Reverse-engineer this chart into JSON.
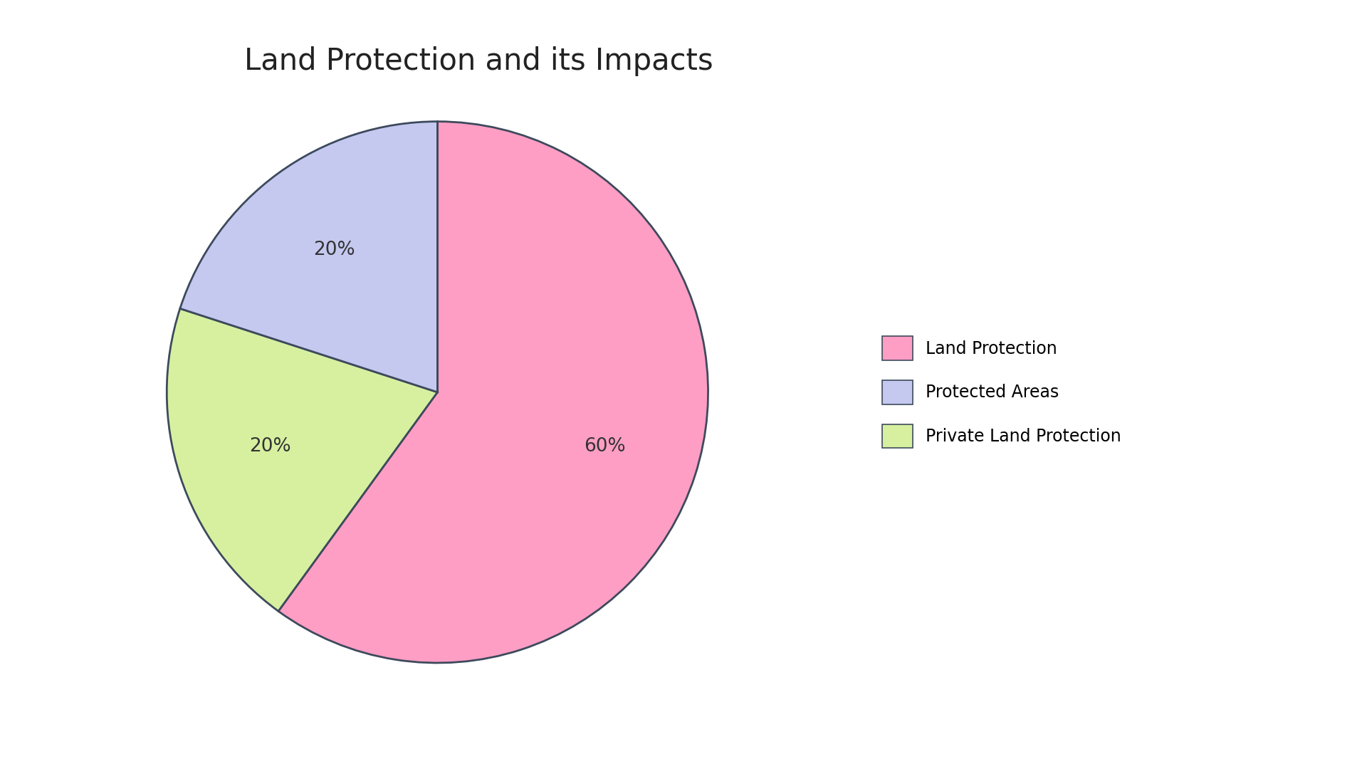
{
  "title": "Land Protection and its Impacts",
  "title_fontsize": 30,
  "labels": [
    "Land Protection",
    "Private Land Protection",
    "Protected Areas"
  ],
  "values": [
    60,
    20,
    20
  ],
  "colors": [
    "#FF9EC4",
    "#D6F0A0",
    "#C5C9F0"
  ],
  "edge_color": "#3d4a5c",
  "edge_width": 2.0,
  "autopct_fontsize": 19,
  "legend_fontsize": 17,
  "legend_labels": [
    "Land Protection",
    "Protected Areas",
    "Private Land Protection"
  ],
  "legend_colors": [
    "#FF9EC4",
    "#C5C9F0",
    "#D6F0A0"
  ],
  "background_color": "#ffffff",
  "startangle": 90,
  "pctdistance": 0.65
}
